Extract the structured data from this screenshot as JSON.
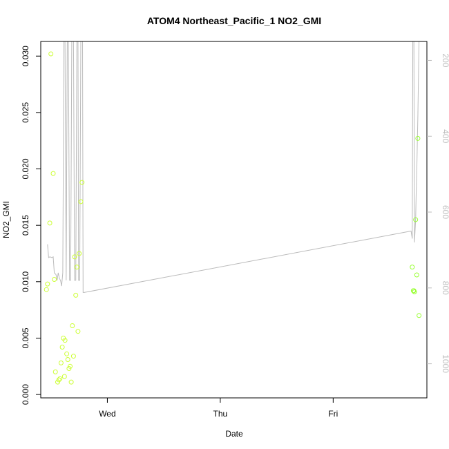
{
  "chart_data": {
    "type": "scatter",
    "title": "ATOM4 Northeast_Pacific_1 NO2_GMI",
    "xlabel": "Date",
    "ylabel": "NO2_GMI",
    "x_ticks": [
      {
        "x": 1.0,
        "label": "Wed"
      },
      {
        "x": 2.0,
        "label": "Thu"
      },
      {
        "x": 3.0,
        "label": "Fri"
      }
    ],
    "y_ticks": [
      0.0,
      0.005,
      0.01,
      0.015,
      0.02,
      0.025,
      0.03
    ],
    "y_tick_labels": [
      "0.000",
      "0.005",
      "0.010",
      "0.015",
      "0.020",
      "0.025",
      "0.030"
    ],
    "y2_ticks": [
      200,
      400,
      600,
      800,
      1000
    ],
    "y2_tick_labels": [
      "200",
      "400",
      "600",
      "800",
      "1000"
    ],
    "xlim": [
      0.41,
      3.83
    ],
    "ylim": [
      -0.0003,
      0.0313
    ],
    "y2lim": [
      1090,
      150
    ],
    "y2_reversed": true,
    "grid": false,
    "colors": {
      "points_early": "#ccff33",
      "points_late": "#99ff33",
      "line": "#bbbbbb",
      "axis": "#000000",
      "right_axis": "#bdbdbd"
    },
    "series": [
      {
        "kind": "points",
        "marker": "open-circle",
        "points": [
          [
            0.46,
            0.0093
          ],
          [
            0.47,
            0.0098
          ],
          [
            0.49,
            0.0152
          ],
          [
            0.5,
            0.0302
          ],
          [
            0.52,
            0.0196
          ],
          [
            0.53,
            0.0102
          ],
          [
            0.54,
            0.002
          ],
          [
            0.56,
            0.0011
          ],
          [
            0.57,
            0.0013
          ],
          [
            0.58,
            0.0014
          ],
          [
            0.59,
            0.0028
          ],
          [
            0.6,
            0.0042
          ],
          [
            0.61,
            0.005
          ],
          [
            0.62,
            0.0016
          ],
          [
            0.625,
            0.0048
          ],
          [
            0.64,
            0.0036
          ],
          [
            0.65,
            0.0031
          ],
          [
            0.66,
            0.0023
          ],
          [
            0.67,
            0.0025
          ],
          [
            0.68,
            0.0011
          ],
          [
            0.69,
            0.0061
          ],
          [
            0.7,
            0.0034
          ],
          [
            0.71,
            0.0122
          ],
          [
            0.72,
            0.0088
          ],
          [
            0.73,
            0.0113
          ],
          [
            0.74,
            0.0056
          ],
          [
            0.75,
            0.0125
          ],
          [
            0.765,
            0.0171
          ],
          [
            0.775,
            0.0188
          ],
          [
            3.7,
            0.0113
          ],
          [
            3.71,
            0.0092
          ],
          [
            3.715,
            0.0092
          ],
          [
            3.72,
            0.0091
          ],
          [
            3.73,
            0.0155
          ],
          [
            3.74,
            0.0106
          ],
          [
            3.75,
            0.0227
          ],
          [
            3.76,
            0.007
          ]
        ]
      },
      {
        "kind": "line",
        "axis": "right",
        "points": [
          [
            0.47,
            685
          ],
          [
            0.48,
            720
          ],
          [
            0.49,
            718
          ],
          [
            0.51,
            720
          ],
          [
            0.52,
            718
          ],
          [
            0.53,
            760
          ],
          [
            0.545,
            765
          ],
          [
            0.555,
            780
          ],
          [
            0.565,
            760
          ],
          [
            0.575,
            775
          ],
          [
            0.585,
            780
          ],
          [
            0.595,
            795
          ],
          [
            0.605,
            760
          ],
          [
            0.615,
            150
          ],
          [
            0.625,
            150
          ],
          [
            0.635,
            780
          ],
          [
            0.645,
            150
          ],
          [
            0.655,
            150
          ],
          [
            0.665,
            780
          ],
          [
            0.675,
            780
          ],
          [
            0.685,
            150
          ],
          [
            0.7,
            150
          ],
          [
            0.71,
            780
          ],
          [
            0.72,
            780
          ],
          [
            0.73,
            150
          ],
          [
            0.74,
            150
          ],
          [
            0.745,
            780
          ],
          [
            0.755,
            780
          ],
          [
            0.765,
            150
          ],
          [
            0.78,
            150
          ],
          [
            0.785,
            812
          ],
          [
            0.795,
            812
          ],
          [
            3.69,
            650
          ],
          [
            3.7,
            670
          ],
          [
            3.705,
            150
          ],
          [
            3.715,
            150
          ],
          [
            3.72,
            680
          ],
          [
            3.73,
            620
          ],
          [
            3.735,
            550
          ],
          [
            3.74,
            500
          ],
          [
            3.745,
            420
          ],
          [
            3.75,
            350
          ],
          [
            3.76,
            150
          ]
        ]
      }
    ]
  }
}
